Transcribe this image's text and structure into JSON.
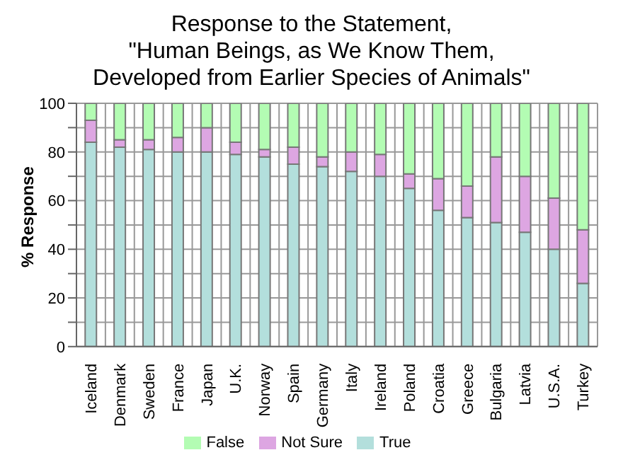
{
  "chart_data": {
    "type": "bar",
    "title": "Response to the Statement,\n\"Human Beings, as We Know Them,\nDeveloped from Earlier Species of Animals\"",
    "ylabel": "% Response",
    "categories": [
      "Iceland",
      "Denmark",
      "Sweden",
      "France",
      "Japan",
      "U.K.",
      "Norway",
      "Spain",
      "Germany",
      "Italy",
      "Ireland",
      "Poland",
      "Croatia",
      "Greece",
      "Bulgaria",
      "Latvia",
      "U.S.A.",
      "Turkey"
    ],
    "stacked": true,
    "series": [
      {
        "name": "True",
        "color": "#b3dfdc",
        "values": [
          84,
          82,
          81,
          80,
          80,
          79,
          78,
          75,
          74,
          72,
          70,
          65,
          56,
          53,
          51,
          47,
          40,
          26
        ]
      },
      {
        "name": "Not Sure",
        "color": "#dda6e2",
        "values": [
          9,
          3,
          4,
          6,
          10,
          5,
          3,
          7,
          4,
          8,
          9,
          6,
          13,
          13,
          27,
          23,
          21,
          22
        ]
      },
      {
        "name": "False",
        "color": "#b3fcb3",
        "values": [
          7,
          15,
          15,
          14,
          10,
          16,
          19,
          18,
          22,
          20,
          21,
          29,
          31,
          34,
          22,
          30,
          39,
          52
        ]
      }
    ],
    "ylim": [
      0,
      100
    ],
    "yticks": [
      0,
      {
        "value": 10,
        "label": null
      },
      20,
      {
        "value": 30,
        "label": null
      },
      40,
      {
        "value": 50,
        "label": null
      },
      60,
      {
        "value": 70,
        "label": null
      },
      80,
      {
        "value": 90,
        "label": null
      },
      100
    ],
    "grid": true,
    "legend": "bottom"
  }
}
